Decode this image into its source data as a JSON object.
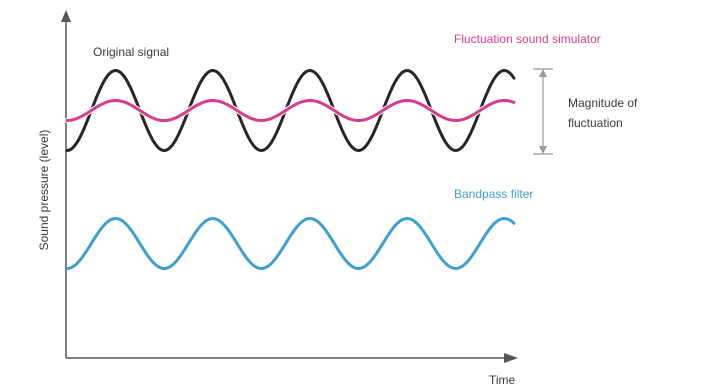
{
  "labels": {
    "original_signal": "Original signal",
    "fluctuation_simulator": "Fluctuation sound simulator",
    "magnitude_of_fluctuation": "Magnitude of fluctuation",
    "bandpass_filter": "Bandpass filter",
    "x_axis": "Time",
    "y_axis": "Sound pressure (level)"
  },
  "colors": {
    "original_signal": "#2b2523",
    "fluctuation_simulator": "#d63d8e",
    "bandpass_filter": "#3fa0cd",
    "axis": "#555555",
    "bracket": "#999999"
  },
  "waves": {
    "original_signal": {
      "cycles": 4.6
    },
    "fluctuation_simulator": {
      "cycles": 4.6
    },
    "bandpass_filter": {
      "cycles": 4.6
    }
  }
}
